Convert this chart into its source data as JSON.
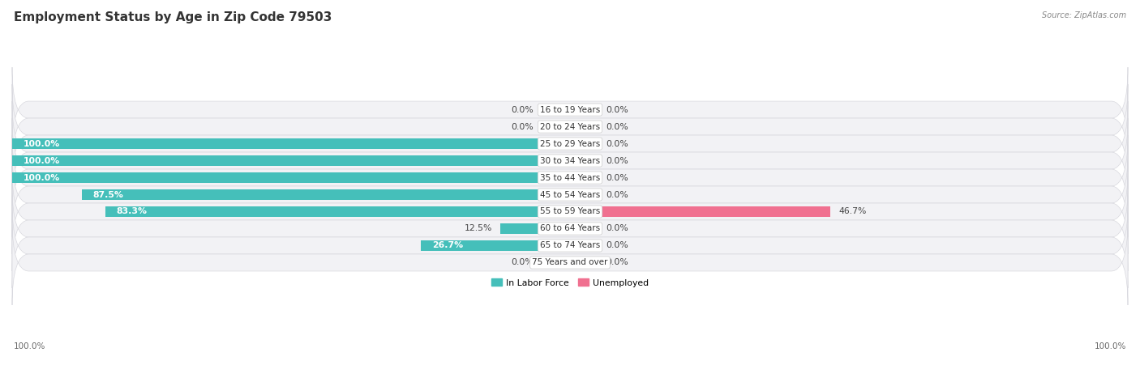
{
  "title": "Employment Status by Age in Zip Code 79503",
  "source": "Source: ZipAtlas.com",
  "categories": [
    "16 to 19 Years",
    "20 to 24 Years",
    "25 to 29 Years",
    "30 to 34 Years",
    "35 to 44 Years",
    "45 to 54 Years",
    "55 to 59 Years",
    "60 to 64 Years",
    "65 to 74 Years",
    "75 Years and over"
  ],
  "labor_force": [
    0.0,
    0.0,
    100.0,
    100.0,
    100.0,
    87.5,
    83.3,
    12.5,
    26.7,
    0.0
  ],
  "unemployed": [
    0.0,
    0.0,
    0.0,
    0.0,
    0.0,
    0.0,
    46.7,
    0.0,
    0.0,
    0.0
  ],
  "labor_force_color": "#45bfba",
  "unemployed_color": "#f07090",
  "labor_force_light": "#a8dedd",
  "unemployed_light": "#f5b8cb",
  "row_bg": "#f2f2f5",
  "row_border": "#d8d8de",
  "bar_height": 0.62,
  "stub_size": 5.0,
  "xlim_left": -100,
  "xlim_right": 100,
  "legend_labor_force": "In Labor Force",
  "legend_unemployed": "Unemployed",
  "fig_width": 14.06,
  "fig_height": 4.51,
  "background_color": "#ffffff",
  "label_fontsize": 7.8,
  "title_fontsize": 11,
  "source_fontsize": 7,
  "axis_label_fontsize": 7.5,
  "category_fontsize": 7.5,
  "bottom_labels": [
    "100.0%",
    "100.0%"
  ]
}
